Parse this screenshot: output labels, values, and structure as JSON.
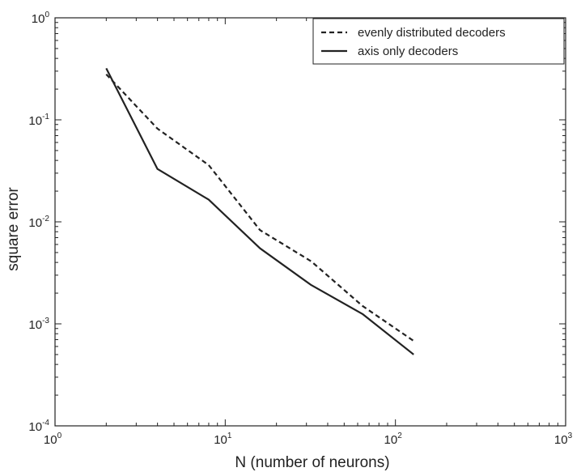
{
  "chart_data": {
    "type": "line",
    "xscale": "log",
    "yscale": "log",
    "xlabel": "N (number of neurons)",
    "ylabel": "square error",
    "xlim": [
      1,
      1000
    ],
    "ylim": [
      0.0001,
      1
    ],
    "x_ticks": [
      {
        "base": "10",
        "exp": "0"
      },
      {
        "base": "10",
        "exp": "1"
      },
      {
        "base": "10",
        "exp": "2"
      },
      {
        "base": "10",
        "exp": "3"
      }
    ],
    "y_ticks": [
      {
        "base": "10",
        "exp": "0"
      },
      {
        "base": "10",
        "exp": "-1"
      },
      {
        "base": "10",
        "exp": "-2"
      },
      {
        "base": "10",
        "exp": "-3"
      },
      {
        "base": "10",
        "exp": "-4"
      }
    ],
    "grid": false,
    "legend_position": "top-right",
    "series": [
      {
        "name": "evenly distributed decoders",
        "style": "dashed",
        "color": "#222222",
        "x": [
          2,
          4,
          8,
          16,
          32,
          64,
          128
        ],
        "y": [
          0.28,
          0.082,
          0.036,
          0.0083,
          0.0041,
          0.0015,
          0.00068
        ]
      },
      {
        "name": "axis only decoders",
        "style": "solid",
        "color": "#222222",
        "x": [
          2,
          4,
          8,
          16,
          32,
          64,
          128
        ],
        "y": [
          0.32,
          0.033,
          0.0165,
          0.0055,
          0.0024,
          0.00125,
          0.0005
        ]
      }
    ]
  }
}
